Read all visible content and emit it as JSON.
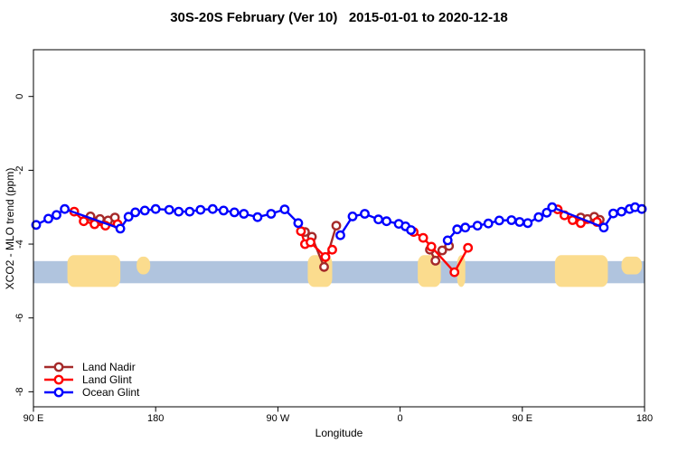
{
  "title": "30S-20S February (Ver 10)   2015-01-01 to 2020-12-18",
  "chart_data": {
    "type": "line",
    "title": "30S-20S February (Ver 10)   2015-01-01 to 2020-12-18",
    "xlabel": "Longitude",
    "ylabel": "XCO2 - MLO trend (ppm)",
    "legend_position": "bottom-left",
    "grid": false,
    "x_axis": {
      "unit": "degrees longitude, unwrapped eastward starting at 90E",
      "range": [
        90,
        540
      ],
      "tick_deg": [
        90,
        180,
        270,
        360,
        450,
        540
      ],
      "tick_labels": [
        "90 E",
        "180",
        "90 W",
        "0",
        "90 E",
        "180"
      ]
    },
    "y_axis": {
      "range": [
        1.27,
        -8.41
      ],
      "tick_values": [
        0,
        -2,
        -4,
        -6,
        -8
      ],
      "tick_labels": [
        "0",
        "-2",
        "-4",
        "-6",
        "-8"
      ]
    },
    "series": [
      {
        "name": "Land Nadir",
        "color": "#A52A2A",
        "segments": [
          [
            [
              132,
              -3.25
            ],
            [
              139,
              -3.32
            ],
            [
              145,
              -3.36
            ],
            [
              150,
              -3.28
            ]
          ],
          [
            [
              290,
              -3.67
            ],
            [
              295,
              -3.8
            ],
            [
              304,
              -4.62
            ],
            [
              313,
              -3.5
            ]
          ],
          [
            [
              382,
              -4.15
            ],
            [
              386,
              -4.45
            ],
            [
              391,
              -4.17
            ],
            [
              396,
              -4.05
            ]
          ],
          [
            [
              493,
              -3.28
            ],
            [
              498,
              -3.32
            ],
            [
              503,
              -3.26
            ],
            [
              507,
              -3.34
            ]
          ]
        ]
      },
      {
        "name": "Land Glint",
        "color": "#FF0000",
        "segments": [
          [
            [
              120,
              -3.12
            ],
            [
              127,
              -3.38
            ],
            [
              135,
              -3.46
            ],
            [
              143,
              -3.5
            ],
            [
              152,
              -3.46
            ]
          ],
          [
            [
              287,
              -3.65
            ],
            [
              290,
              -4.0
            ],
            [
              294,
              -3.95
            ],
            [
              305,
              -4.35
            ],
            [
              310,
              -4.15
            ]
          ],
          [
            [
              370,
              -3.67
            ],
            [
              377,
              -3.83
            ],
            [
              383,
              -4.07
            ],
            [
              400,
              -4.76
            ],
            [
              410,
              -4.1
            ]
          ],
          [
            [
              476,
              -3.06
            ],
            [
              481,
              -3.22
            ],
            [
              487,
              -3.35
            ],
            [
              493,
              -3.43
            ],
            [
              505,
              -3.4
            ]
          ]
        ]
      },
      {
        "name": "Ocean Glint",
        "color": "#0000FF",
        "segments": [
          [
            [
              92,
              -3.48
            ],
            [
              101,
              -3.31
            ],
            [
              107,
              -3.21
            ],
            [
              113,
              -3.05
            ],
            [
              154,
              -3.58
            ],
            [
              160,
              -3.26
            ],
            [
              165,
              -3.14
            ],
            [
              172,
              -3.09
            ],
            [
              180,
              -3.05
            ],
            [
              190,
              -3.07
            ],
            [
              197,
              -3.12
            ],
            [
              205,
              -3.12
            ],
            [
              213,
              -3.07
            ],
            [
              222,
              -3.05
            ],
            [
              230,
              -3.09
            ],
            [
              238,
              -3.14
            ],
            [
              245,
              -3.18
            ],
            [
              255,
              -3.27
            ],
            [
              265,
              -3.18
            ],
            [
              275,
              -3.06
            ],
            [
              285,
              -3.43
            ]
          ],
          [
            [
              316,
              -3.76
            ],
            [
              325,
              -3.25
            ],
            [
              334,
              -3.18
            ],
            [
              344,
              -3.33
            ],
            [
              350,
              -3.38
            ],
            [
              359,
              -3.45
            ],
            [
              364,
              -3.52
            ],
            [
              368,
              -3.62
            ]
          ],
          [
            [
              395,
              -3.9
            ],
            [
              402,
              -3.6
            ],
            [
              408,
              -3.55
            ],
            [
              417,
              -3.5
            ],
            [
              425,
              -3.44
            ],
            [
              433,
              -3.36
            ],
            [
              442,
              -3.35
            ],
            [
              448,
              -3.4
            ],
            [
              454,
              -3.43
            ],
            [
              462,
              -3.27
            ],
            [
              468,
              -3.15
            ],
            [
              472,
              -3.0
            ],
            [
              510,
              -3.55
            ],
            [
              517,
              -3.17
            ],
            [
              523,
              -3.12
            ],
            [
              529,
              -3.05
            ],
            [
              533,
              -3.0
            ],
            [
              538,
              -3.05
            ]
          ]
        ]
      }
    ],
    "surface_band": {
      "description": "surface-type strip: ocean ribbon with land patches",
      "ocean_color": "#B0C4DE",
      "land_color": "#FBDC8E",
      "ocean_top": -4.46,
      "ocean_bottom": -5.06,
      "land_top": -4.3,
      "land_bottom": -5.16,
      "partial_top": -4.34,
      "partial_bottom": -4.82,
      "land_segments": [
        {
          "deg": [
            115,
            154
          ],
          "h": "full"
        },
        {
          "deg": [
            166,
            176
          ],
          "h": "partial"
        },
        {
          "deg": [
            292,
            310
          ],
          "h": "full"
        },
        {
          "deg": [
            373,
            390
          ],
          "h": "full"
        },
        {
          "deg": [
            402,
            408
          ],
          "h": "full"
        },
        {
          "deg": [
            474,
            513
          ],
          "h": "full"
        },
        {
          "deg": [
            523,
            538
          ],
          "h": "partial"
        }
      ]
    }
  }
}
